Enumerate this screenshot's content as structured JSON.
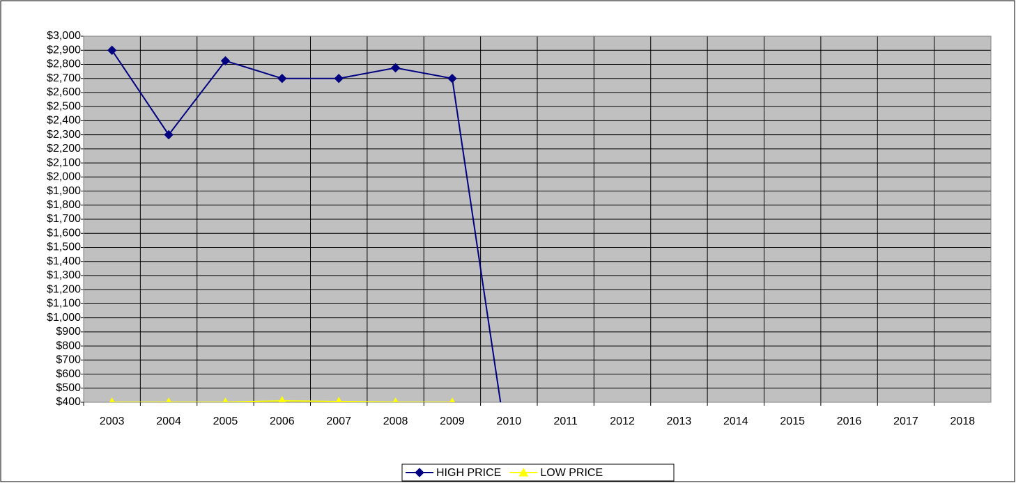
{
  "chart_data": {
    "type": "line",
    "categories": [
      "2003",
      "2004",
      "2005",
      "2006",
      "2007",
      "2008",
      "2009",
      "2010",
      "2011",
      "2012",
      "2013",
      "2014",
      "2015",
      "2016",
      "2017",
      "2018"
    ],
    "series": [
      {
        "name": "HIGH PRICE",
        "color": "#000080",
        "marker": "diamond",
        "values": [
          2900,
          2300,
          2825,
          2700,
          2700,
          2775,
          2700,
          0,
          null,
          null,
          null,
          null,
          null,
          null,
          null,
          null
        ]
      },
      {
        "name": "LOW PRICE",
        "color": "#ffff00",
        "marker": "triangle",
        "values": [
          400,
          400,
          400,
          410,
          405,
          400,
          400,
          null,
          null,
          null,
          null,
          null,
          null,
          null,
          null,
          null
        ]
      }
    ],
    "ylim": [
      400,
      3000
    ],
    "yticks": [
      {
        "value": 400,
        "label": "$400"
      },
      {
        "value": 500,
        "label": "$500"
      },
      {
        "value": 600,
        "label": "$600"
      },
      {
        "value": 700,
        "label": "$700"
      },
      {
        "value": 800,
        "label": "$800"
      },
      {
        "value": 900,
        "label": "$900"
      },
      {
        "value": 1000,
        "label": "$1,000"
      },
      {
        "value": 1100,
        "label": "$1,100"
      },
      {
        "value": 1200,
        "label": "$1,200"
      },
      {
        "value": 1300,
        "label": "$1,300"
      },
      {
        "value": 1400,
        "label": "$1,400"
      },
      {
        "value": 1500,
        "label": "$1,500"
      },
      {
        "value": 1600,
        "label": "$1,600"
      },
      {
        "value": 1700,
        "label": "$1,700"
      },
      {
        "value": 1800,
        "label": "$1,800"
      },
      {
        "value": 1900,
        "label": "$1,900"
      },
      {
        "value": 2000,
        "label": "$2,000"
      },
      {
        "value": 2100,
        "label": "$2,100"
      },
      {
        "value": 2200,
        "label": "$2,200"
      },
      {
        "value": 2300,
        "label": "$2,300"
      },
      {
        "value": 2400,
        "label": "$2,400"
      },
      {
        "value": 2500,
        "label": "$2,500"
      },
      {
        "value": 2600,
        "label": "$2,600"
      },
      {
        "value": 2700,
        "label": "$2,700"
      },
      {
        "value": 2800,
        "label": "$2,800"
      },
      {
        "value": 2900,
        "label": "$2,900"
      },
      {
        "value": 3000,
        "label": "$3,000"
      }
    ],
    "grid": true,
    "plot_background": "#c0c0c0",
    "legend": "bottom"
  }
}
